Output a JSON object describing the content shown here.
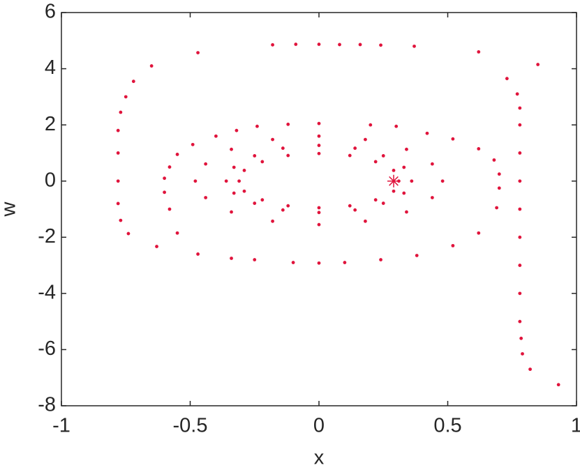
{
  "chart_data": {
    "type": "scatter",
    "xlabel": "x",
    "ylabel": "w",
    "xlim": [
      -1,
      1
    ],
    "ylim": [
      -8,
      6
    ],
    "xticks": [
      -1,
      -0.5,
      0,
      0.5,
      1
    ],
    "yticks": [
      -8,
      -6,
      -4,
      -2,
      0,
      2,
      4,
      6
    ],
    "grid": false,
    "series": [
      {
        "color": "#e0143c",
        "marker": "dot",
        "x": [
          0.31,
          0.29,
          0.22,
          0.12,
          0,
          -0.12,
          -0.22,
          -0.29,
          -0.31,
          -0.29,
          -0.22,
          -0.12,
          0,
          0.12,
          0.22,
          0.29
        ],
        "values": [
          0,
          0.38,
          0.69,
          0.91,
          0.98,
          0.91,
          0.69,
          0.38,
          0,
          -0.36,
          -0.67,
          -0.88,
          -0.95,
          -0.88,
          -0.67,
          -0.36
        ]
      },
      {
        "color": "#e0143c",
        "marker": "dot",
        "x": [
          0.36,
          0.33,
          0.25,
          0.14,
          0,
          -0.14,
          -0.25,
          -0.33,
          -0.36,
          -0.33,
          -0.25,
          -0.14,
          0,
          0.14,
          0.25,
          0.33
        ],
        "values": [
          0,
          0.49,
          0.9,
          1.17,
          1.27,
          1.17,
          0.9,
          0.49,
          0,
          -0.43,
          -0.79,
          -1.03,
          -1.12,
          -1.03,
          -0.79,
          -0.43
        ]
      },
      {
        "color": "#e0143c",
        "marker": "dot",
        "x": [
          0.48,
          0.44,
          0.34,
          0.18,
          0,
          -0.18,
          -0.34,
          -0.44,
          -0.48,
          -0.44,
          -0.34,
          -0.18,
          0,
          0.18,
          0.34,
          0.44
        ],
        "values": [
          0,
          0.61,
          1.13,
          1.48,
          1.6,
          1.48,
          1.13,
          0.61,
          0,
          -0.59,
          -1.1,
          -1.43,
          -1.55,
          -1.43,
          -1.1,
          -0.59
        ]
      },
      {
        "color": "#e0143c",
        "marker": "dot",
        "x": [
          0,
          0.2,
          0.3,
          0.42,
          0.52,
          0.62,
          0.68,
          0.7,
          0.7,
          0.69,
          0.62,
          0.52,
          0.38,
          0.24,
          0.1,
          0,
          -0.1,
          -0.25,
          -0.34,
          -0.47,
          -0.55,
          -0.58,
          -0.6,
          -0.6,
          -0.58,
          -0.55,
          -0.49,
          -0.4,
          -0.32,
          -0.24,
          -0.12
        ],
        "values": [
          2.05,
          2.0,
          1.95,
          1.7,
          1.5,
          1.15,
          0.75,
          0.25,
          -0.25,
          -0.95,
          -1.85,
          -2.3,
          -2.65,
          -2.8,
          -2.9,
          -2.92,
          -2.9,
          -2.8,
          -2.75,
          -2.6,
          -1.85,
          -1.0,
          -0.4,
          0.1,
          0.5,
          0.95,
          1.3,
          1.6,
          1.8,
          1.95,
          2.02
        ]
      },
      {
        "color": "#e0143c",
        "marker": "dot",
        "x": [
          -0.18,
          -0.09,
          0,
          0.08,
          0.16,
          0.24,
          0.37,
          0.62,
          0.73,
          0.77,
          0.78,
          0.78,
          0.78,
          0.78,
          0.78,
          0.78,
          0.78,
          0.78,
          0.78,
          0.785,
          0.79,
          0.82,
          0.93,
          0.85,
          -0.47,
          -0.65,
          -0.72,
          -0.75,
          -0.77,
          -0.78,
          -0.78,
          -0.78,
          -0.78,
          -0.77,
          -0.74,
          -0.63
        ],
        "values": [
          4.85,
          4.87,
          4.87,
          4.86,
          4.86,
          4.84,
          4.8,
          4.6,
          3.65,
          3.1,
          2.6,
          2.0,
          1.0,
          0,
          -1.0,
          -2.0,
          -3.0,
          -4.0,
          -5.0,
          -5.6,
          -6.15,
          -6.7,
          -7.25,
          4.15,
          4.57,
          4.1,
          3.55,
          3.0,
          2.45,
          1.8,
          1.0,
          0,
          -0.8,
          -1.4,
          -1.87,
          -2.33
        ]
      },
      {
        "color": "#e0143c",
        "marker": "star",
        "x": [
          0.29
        ],
        "values": [
          0
        ]
      }
    ]
  }
}
